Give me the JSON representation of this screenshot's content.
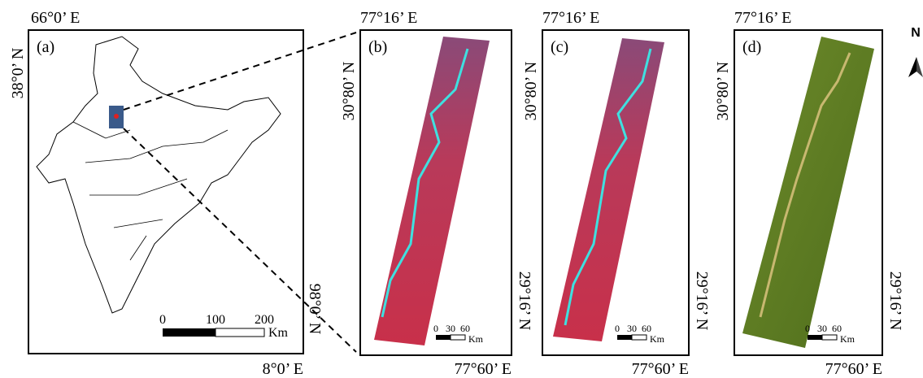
{
  "north": "N",
  "panels": [
    {
      "label": "(a)",
      "top_lon": "66°0’ E",
      "left_lat": "38°0’ N",
      "bottom_lon": "8°0’ E",
      "right_lat": "98°0’ N",
      "scale": {
        "ticks": [
          "0",
          "100",
          "200"
        ],
        "unit": "Km"
      }
    },
    {
      "label": "(b)",
      "top_lon": "77°16’ E",
      "left_lat": "30°80’ N",
      "bottom_lon": "77°60’ E",
      "right_lat": "29°16’ N",
      "scale": {
        "ticks": [
          "0",
          "30",
          "60"
        ],
        "unit": "Km"
      }
    },
    {
      "label": "(c)",
      "top_lon": "77°16’ E",
      "left_lat": "30°80’ N",
      "bottom_lon": "77°60’ E",
      "right_lat": "29°16’ N",
      "scale": {
        "ticks": [
          "0",
          "30",
          "60"
        ],
        "unit": "Km"
      }
    },
    {
      "label": "(d)",
      "top_lon": "77°16’ E",
      "left_lat": "30°80’ N",
      "bottom_lon": "77°60’ E",
      "right_lat": "29°16’ N",
      "scale": {
        "ticks": [
          "0",
          "30",
          "60"
        ],
        "unit": "Km"
      }
    }
  ]
}
